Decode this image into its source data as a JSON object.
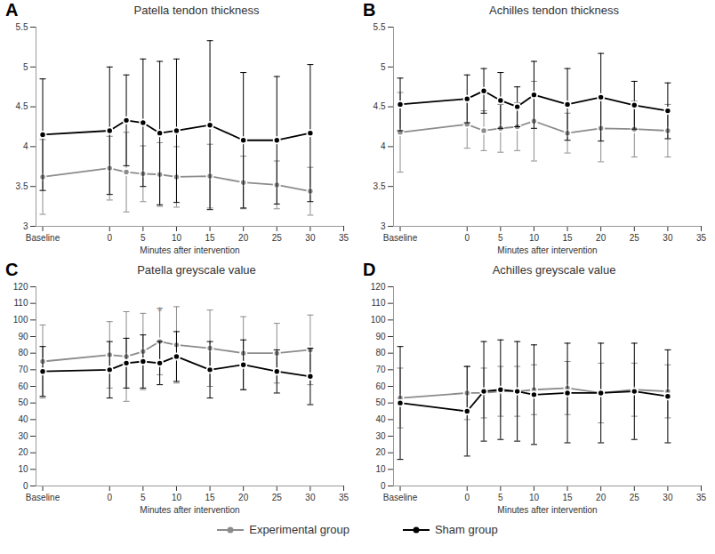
{
  "chart_data": [
    {
      "type": "line",
      "panel": "A",
      "title": "Patella tendon thickness",
      "x_label": "Minutes after intervention",
      "x": [
        -10,
        0,
        2.5,
        5,
        7.5,
        10,
        15,
        20,
        25,
        30
      ],
      "xlim": [
        -11,
        35
      ],
      "xticks": [
        {
          "value": -10,
          "label": "Baseline"
        },
        0,
        5,
        10,
        15,
        20,
        25,
        30,
        35
      ],
      "ylim": [
        3,
        5.5
      ],
      "yticks": [
        3,
        3.5,
        4,
        4.5,
        5,
        5.5
      ],
      "legend": "bottom",
      "series": [
        {
          "name": "Experimental group",
          "color": "#8c8c8c",
          "marker": "circle",
          "values": [
            3.62,
            3.73,
            3.68,
            3.66,
            3.65,
            3.62,
            3.63,
            3.55,
            3.52,
            3.44
          ],
          "errors": [
            0.47,
            0.4,
            0.5,
            0.35,
            0.4,
            0.38,
            0.4,
            0.33,
            0.3,
            0.3
          ]
        },
        {
          "name": "Sham group",
          "color": "#000000",
          "marker": "circle",
          "values": [
            4.15,
            4.2,
            4.33,
            4.3,
            4.17,
            4.2,
            4.27,
            4.08,
            4.08,
            4.17
          ],
          "errors": [
            0.7,
            0.8,
            0.57,
            0.8,
            0.9,
            0.9,
            1.06,
            0.85,
            0.8,
            0.86
          ]
        }
      ]
    },
    {
      "type": "line",
      "panel": "B",
      "title": "Achilles tendon thickness",
      "x_label": "Minutes after intervention",
      "x": [
        -10,
        0,
        2.5,
        5,
        7.5,
        10,
        15,
        20,
        25,
        30
      ],
      "xlim": [
        -11,
        35
      ],
      "xticks": [
        {
          "value": -10,
          "label": "Baseline"
        },
        0,
        5,
        10,
        15,
        20,
        25,
        30,
        35
      ],
      "ylim": [
        3,
        5.5
      ],
      "yticks": [
        3,
        3.5,
        4,
        4.5,
        5,
        5.5
      ],
      "legend": "bottom",
      "series": [
        {
          "name": "Experimental group",
          "color": "#8c8c8c",
          "marker": "circle",
          "values": [
            4.18,
            4.28,
            4.2,
            4.23,
            4.25,
            4.32,
            4.17,
            4.23,
            4.22,
            4.2
          ],
          "errors": [
            0.5,
            0.3,
            0.25,
            0.3,
            0.3,
            0.5,
            0.25,
            0.42,
            0.35,
            0.33
          ]
        },
        {
          "name": "Sham group",
          "color": "#000000",
          "marker": "circle",
          "values": [
            4.53,
            4.6,
            4.7,
            4.58,
            4.5,
            4.65,
            4.53,
            4.62,
            4.52,
            4.45
          ],
          "errors": [
            0.33,
            0.3,
            0.28,
            0.35,
            0.25,
            0.42,
            0.45,
            0.55,
            0.3,
            0.35
          ]
        }
      ]
    },
    {
      "type": "line",
      "panel": "C",
      "title": "Patella greyscale value",
      "x_label": "Minutes after intervention",
      "x": [
        -10,
        0,
        2.5,
        5,
        7.5,
        10,
        15,
        20,
        25,
        30
      ],
      "xlim": [
        -11,
        35
      ],
      "xticks": [
        {
          "value": -10,
          "label": "Baseline"
        },
        0,
        5,
        10,
        15,
        20,
        25,
        30,
        35
      ],
      "ylim": [
        0,
        120
      ],
      "yticks": [
        0,
        10,
        20,
        30,
        40,
        50,
        60,
        70,
        80,
        90,
        100,
        110,
        120
      ],
      "legend": "bottom",
      "annotations": [
        {
          "x": 7.5,
          "y": 105,
          "text": "*"
        }
      ],
      "series": [
        {
          "name": "Experimental group",
          "color": "#8c8c8c",
          "marker": "circle",
          "values": [
            75,
            79,
            78,
            81,
            87,
            85,
            83,
            80,
            80,
            82
          ],
          "errors": [
            22,
            20,
            27,
            23,
            20,
            23,
            23,
            22,
            18,
            21
          ]
        },
        {
          "name": "Sham group",
          "color": "#000000",
          "marker": "circle",
          "values": [
            69,
            70,
            74,
            75,
            74,
            78,
            70,
            73,
            69,
            66
          ],
          "errors": [
            15,
            17,
            15,
            16,
            13,
            15,
            17,
            15,
            13,
            17
          ]
        }
      ]
    },
    {
      "type": "line",
      "panel": "D",
      "title": "Achilles greyscale value",
      "x_label": "Minutes after intervention",
      "x": [
        -10,
        0,
        2.5,
        5,
        7.5,
        10,
        15,
        20,
        25,
        30
      ],
      "xlim": [
        -11,
        35
      ],
      "xticks": [
        {
          "value": -10,
          "label": "Baseline"
        },
        0,
        5,
        10,
        15,
        20,
        25,
        30,
        35
      ],
      "ylim": [
        0,
        120
      ],
      "yticks": [
        0,
        10,
        20,
        30,
        40,
        50,
        60,
        70,
        80,
        90,
        100,
        110,
        120
      ],
      "legend": "bottom",
      "series": [
        {
          "name": "Experimental group",
          "color": "#8c8c8c",
          "marker": "circle",
          "values": [
            53,
            56,
            56,
            57,
            57,
            58,
            59,
            56,
            58,
            57
          ],
          "errors": [
            18,
            16,
            15,
            15,
            15,
            15,
            16,
            18,
            16,
            16
          ]
        },
        {
          "name": "Sham group",
          "color": "#000000",
          "marker": "circle",
          "values": [
            50,
            45,
            57,
            58,
            57,
            55,
            56,
            56,
            57,
            54
          ],
          "errors": [
            34,
            27,
            30,
            30,
            30,
            30,
            30,
            30,
            29,
            28
          ]
        }
      ]
    }
  ]
}
